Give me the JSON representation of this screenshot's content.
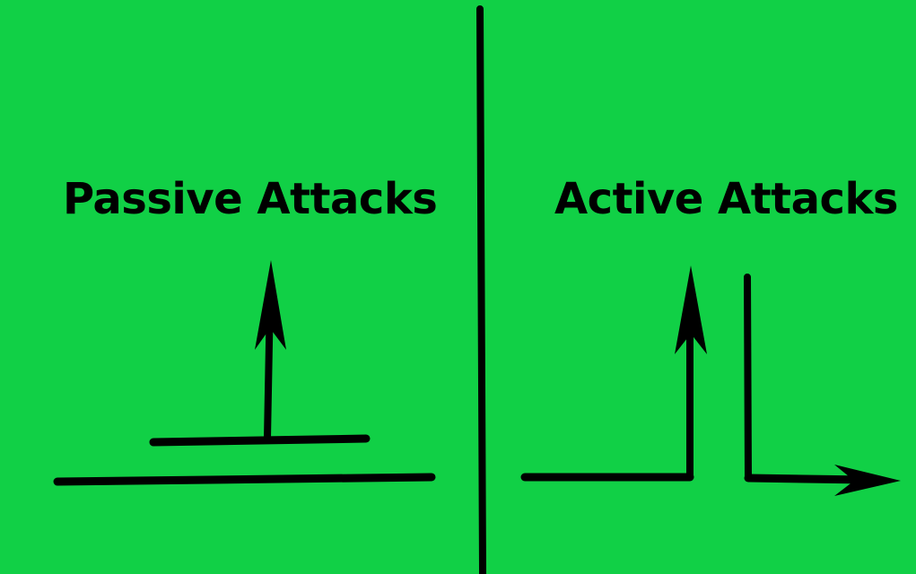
{
  "colors": {
    "background": "#11d046",
    "stroke": "#000000"
  },
  "passive": {
    "title": "Passive Attacks"
  },
  "active": {
    "title": "Active Attacks"
  }
}
